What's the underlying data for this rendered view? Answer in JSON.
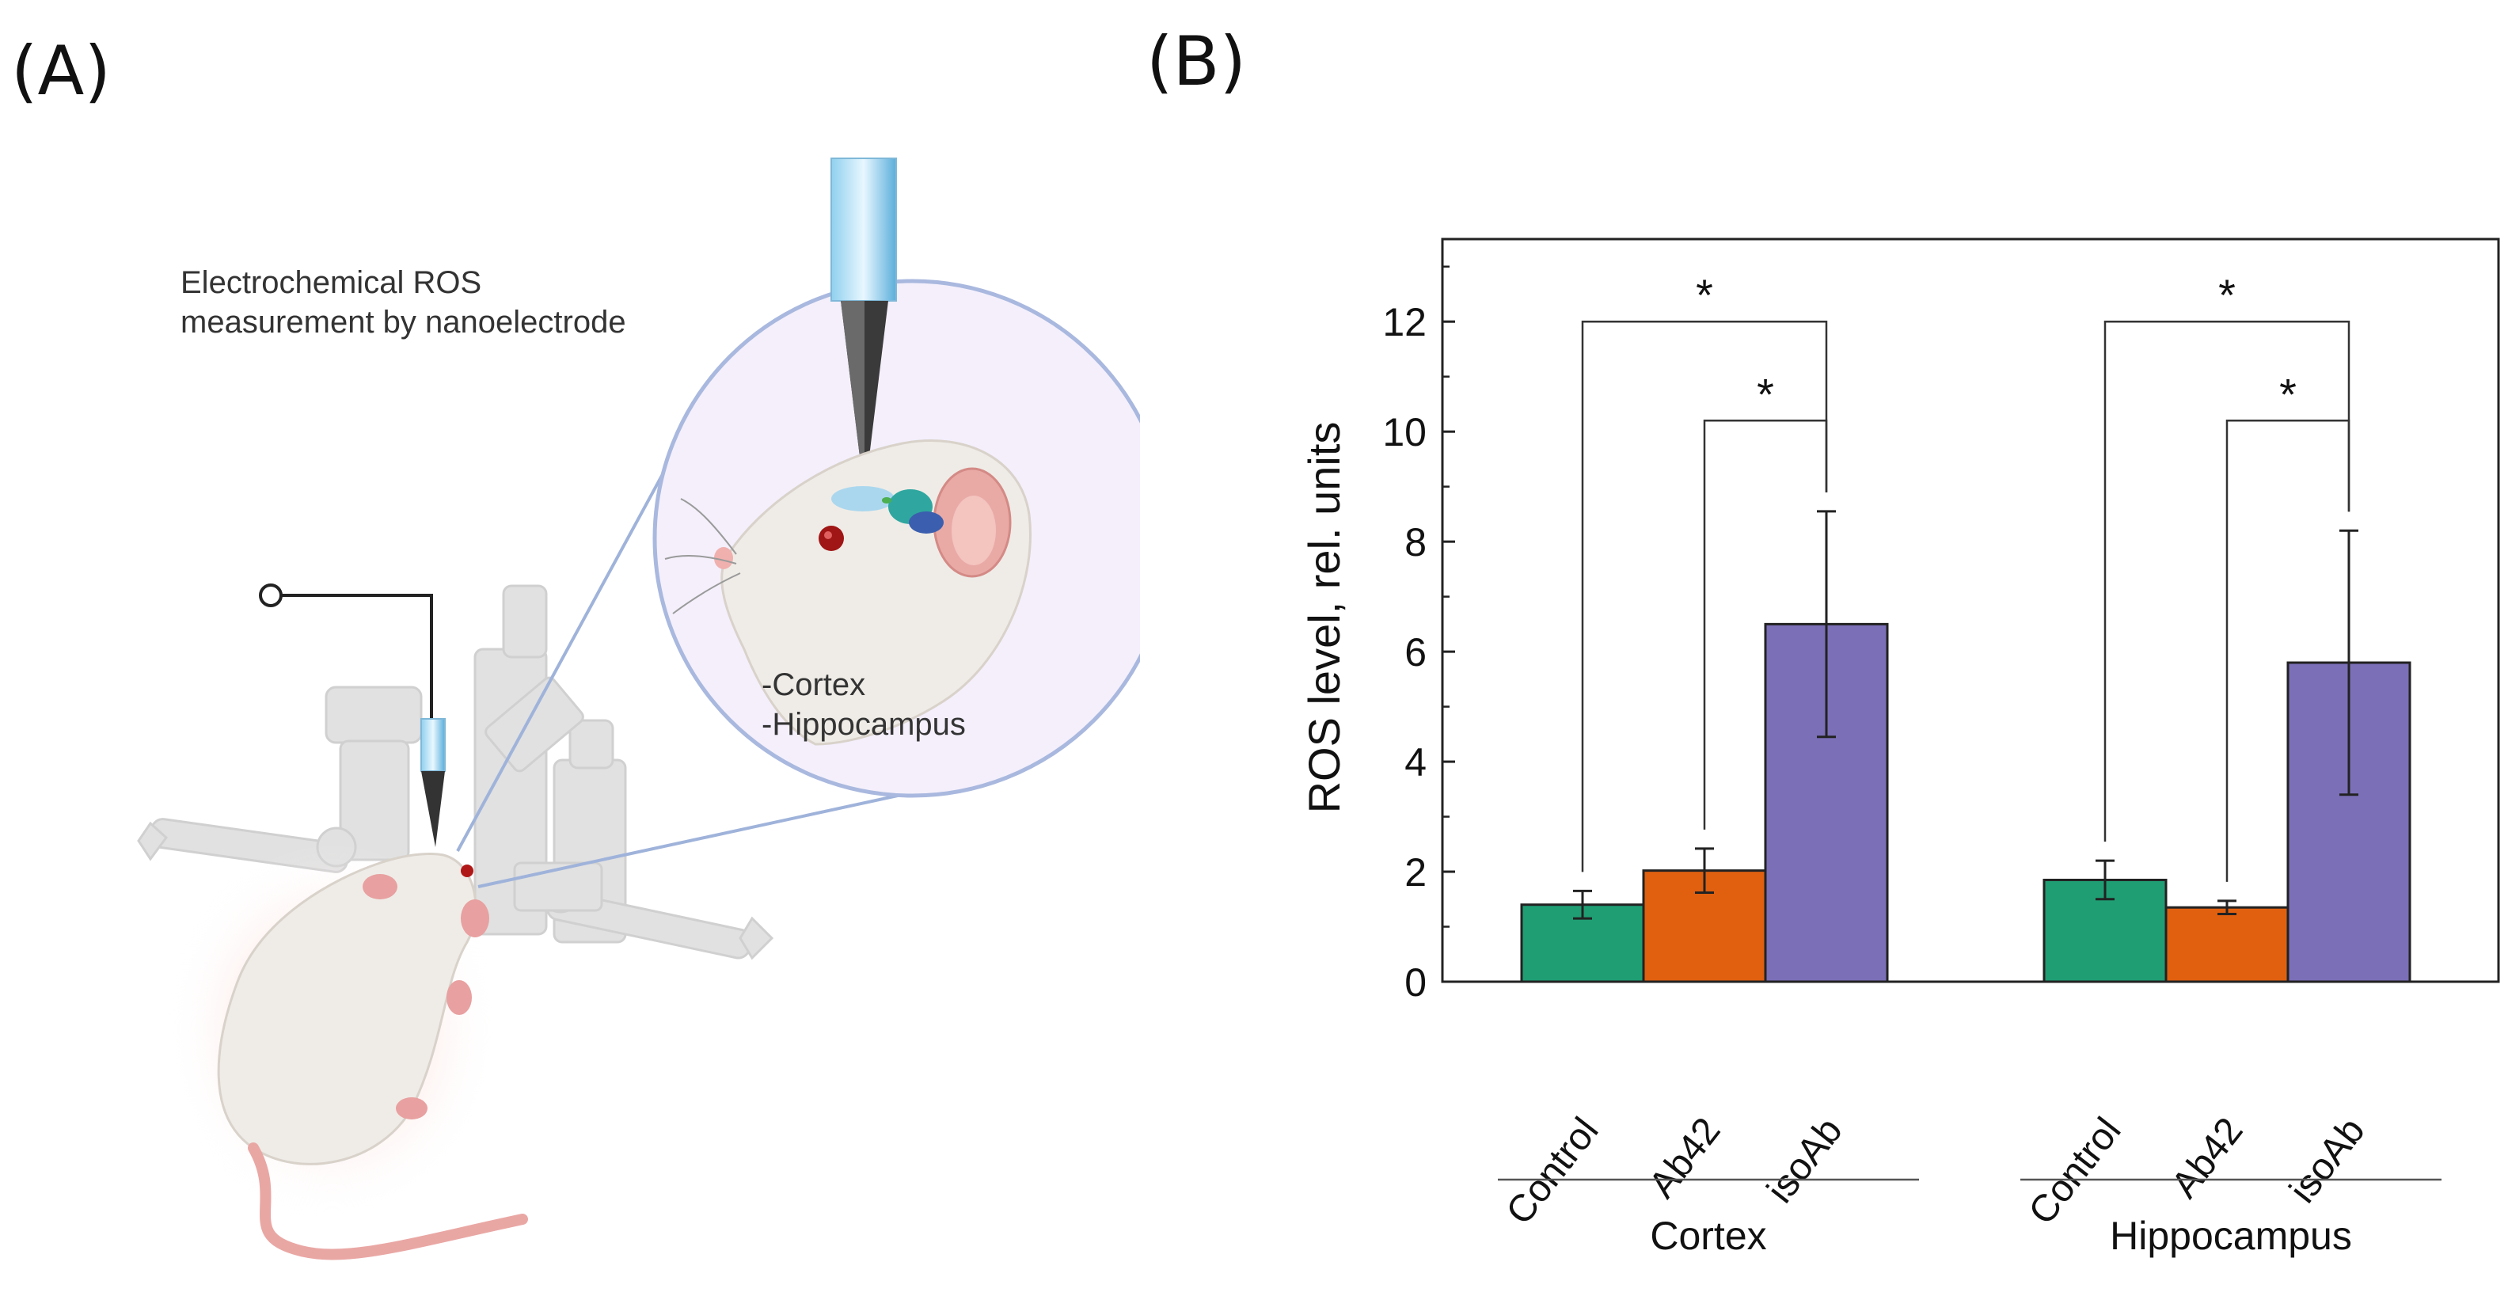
{
  "panels": {
    "a_label": "(A)",
    "b_label": "(B)"
  },
  "illustration": {
    "caption_line1": "Electrochemical ROS",
    "caption_line2": "measurement by nanoelectrode",
    "region1": "-Cortex",
    "region2": "-Hippocampus"
  },
  "colors": {
    "control": "#1f9e74",
    "ab42": "#e06010",
    "isoab": "#7b6fb8"
  },
  "chart_data": {
    "type": "bar",
    "title": "",
    "xlabel": "",
    "ylabel": "ROS level, rel. units",
    "ylim": [
      0,
      13.5
    ],
    "yticks": [
      0,
      2,
      4,
      6,
      8,
      10,
      12
    ],
    "grid": false,
    "legend": "none",
    "groups": [
      {
        "name": "Cortex",
        "categories": [
          "Control",
          "Ab42",
          "isoAb"
        ],
        "values": [
          1.4,
          2.02,
          6.5
        ],
        "errors": [
          0.25,
          0.4,
          2.05
        ]
      },
      {
        "name": "Hippocampus",
        "categories": [
          "Control",
          "Ab42",
          "isoAb"
        ],
        "values": [
          1.85,
          1.35,
          5.8
        ],
        "errors": [
          0.35,
          0.12,
          2.4
        ]
      }
    ],
    "significance": [
      {
        "group": 0,
        "from": 0,
        "to": 2,
        "y": 12.0,
        "label": "*"
      },
      {
        "group": 0,
        "from": 1,
        "to": 2,
        "y": 10.2,
        "label": "*"
      },
      {
        "group": 1,
        "from": 0,
        "to": 2,
        "y": 12.0,
        "label": "*"
      },
      {
        "group": 1,
        "from": 1,
        "to": 2,
        "y": 10.2,
        "label": "*"
      }
    ]
  }
}
